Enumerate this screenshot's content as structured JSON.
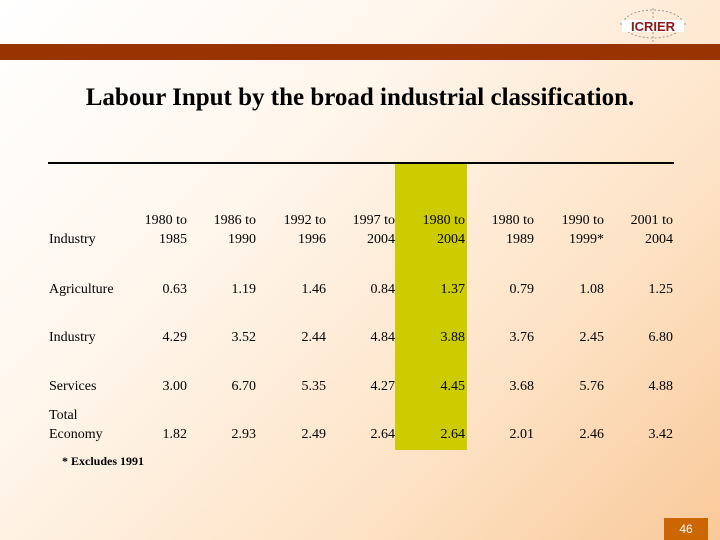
{
  "logo": {
    "text": "ICRIER"
  },
  "title": "Labour Input by the broad industrial classification.",
  "table": {
    "row_header_label": "Industry",
    "columns": [
      "1980 to\n1985",
      "1986 to\n1990",
      "1992 to\n1996",
      "1997 to\n2004",
      "1980 to\n2004",
      "1980 to\n1989",
      "1990 to\n1999*",
      "2001 to\n2004"
    ],
    "rows": [
      {
        "label": "Agriculture",
        "values": [
          "0.63",
          "1.19",
          "1.46",
          "0.84",
          "1.37",
          "0.79",
          "1.08",
          "1.25"
        ]
      },
      {
        "label": "Industry",
        "values": [
          "4.29",
          "3.52",
          "2.44",
          "4.84",
          "3.88",
          "3.76",
          "2.45",
          "6.80"
        ]
      },
      {
        "label": "Services",
        "values": [
          "3.00",
          "6.70",
          "5.35",
          "4.27",
          "4.45",
          "3.68",
          "5.76",
          "4.88"
        ]
      },
      {
        "label": "Total\nEconomy",
        "values": [
          "1.82",
          "2.93",
          "2.49",
          "2.64",
          "2.64",
          "2.01",
          "2.46",
          "3.42"
        ]
      }
    ],
    "highlight_color": "#cccc00"
  },
  "footnote": "* Excludes 1991",
  "page_number": "46",
  "colors": {
    "top_bar": "#993300",
    "page_badge": "#cc6600"
  }
}
